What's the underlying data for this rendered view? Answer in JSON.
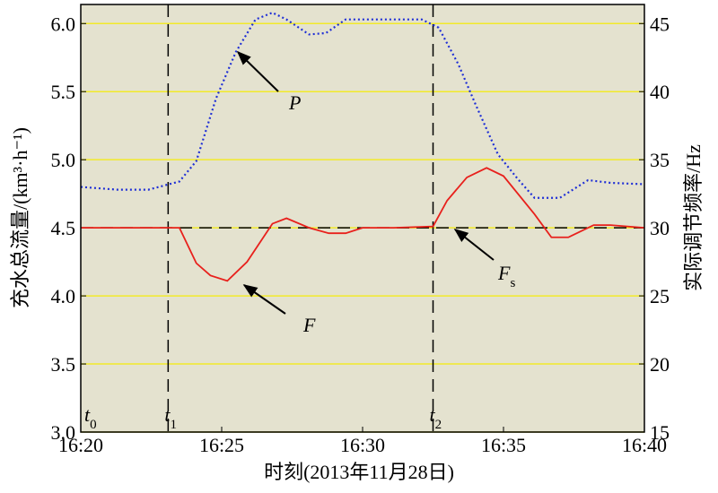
{
  "chart_data": {
    "type": "line",
    "x_label": "时刻(2013年11月28日)",
    "y_label": "充水总流量/(km³·h⁻¹)",
    "y2_label": "实际调节频率/Hz",
    "xlim": [
      980,
      1000
    ],
    "xticks": [
      {
        "value": 980,
        "label": "16:20"
      },
      {
        "value": 985,
        "label": "16:25"
      },
      {
        "value": 990,
        "label": "16:30"
      },
      {
        "value": 995,
        "label": "16:35"
      },
      {
        "value": 1000,
        "label": "16:40"
      }
    ],
    "ylim": [
      3.0,
      6.14
    ],
    "yticks": [
      {
        "value": 3.0,
        "label": "3.0"
      },
      {
        "value": 3.5,
        "label": "3.5"
      },
      {
        "value": 4.0,
        "label": "4.0"
      },
      {
        "value": 4.5,
        "label": "4.5"
      },
      {
        "value": 5.0,
        "label": "5.0"
      },
      {
        "value": 5.5,
        "label": "5.5"
      },
      {
        "value": 6.0,
        "label": "6.0"
      }
    ],
    "y2lim": [
      15,
      46.4
    ],
    "y2ticks": [
      15,
      20,
      25,
      30,
      35,
      40,
      45
    ],
    "grid": true,
    "series": [
      {
        "name": "F",
        "color": "#e8201c",
        "axis": "y",
        "x": [
          980,
          983.5,
          984.1,
          984.6,
          985.2,
          985.9,
          986.8,
          987.3,
          988.1,
          988.8,
          989.4,
          990.0,
          991.1,
          992.5,
          993.0,
          993.7,
          994.4,
          995.0,
          996.1,
          996.7,
          997.3,
          998.2,
          998.8,
          1000
        ],
        "values": [
          4.5,
          4.5,
          4.24,
          4.15,
          4.11,
          4.25,
          4.53,
          4.57,
          4.5,
          4.46,
          4.46,
          4.5,
          4.5,
          4.51,
          4.7,
          4.87,
          4.94,
          4.88,
          4.6,
          4.43,
          4.43,
          4.52,
          4.52,
          4.5
        ]
      },
      {
        "name": "P",
        "color": "#1f2fd6",
        "axis": "y2",
        "x": [
          980,
          981.3,
          982.4,
          983.5,
          984.1,
          984.8,
          985.5,
          986.2,
          986.8,
          987.3,
          988.1,
          988.7,
          989.4,
          990.5,
          992.1,
          992.7,
          993.4,
          994.0,
          994.8,
          995.5,
          996.1,
          997.0,
          998.0,
          998.8,
          1000
        ],
        "values": [
          33.0,
          32.8,
          32.8,
          33.4,
          34.9,
          39.5,
          42.9,
          45.3,
          45.8,
          45.3,
          44.2,
          44.3,
          45.3,
          45.3,
          45.3,
          44.7,
          42.0,
          39.1,
          35.4,
          33.6,
          32.2,
          32.2,
          33.5,
          33.3,
          33.2
        ]
      }
    ],
    "hline": {
      "value": 4.5,
      "label": {
        "text": "F",
        "sub": "s"
      }
    },
    "vlines": [
      {
        "x": 980,
        "label": {
          "text": "t",
          "sub": "0"
        }
      },
      {
        "x": 983.1,
        "label": {
          "text": "t",
          "sub": "1"
        }
      },
      {
        "x": 992.5,
        "label": {
          "text": "t",
          "sub": "2"
        }
      }
    ]
  }
}
